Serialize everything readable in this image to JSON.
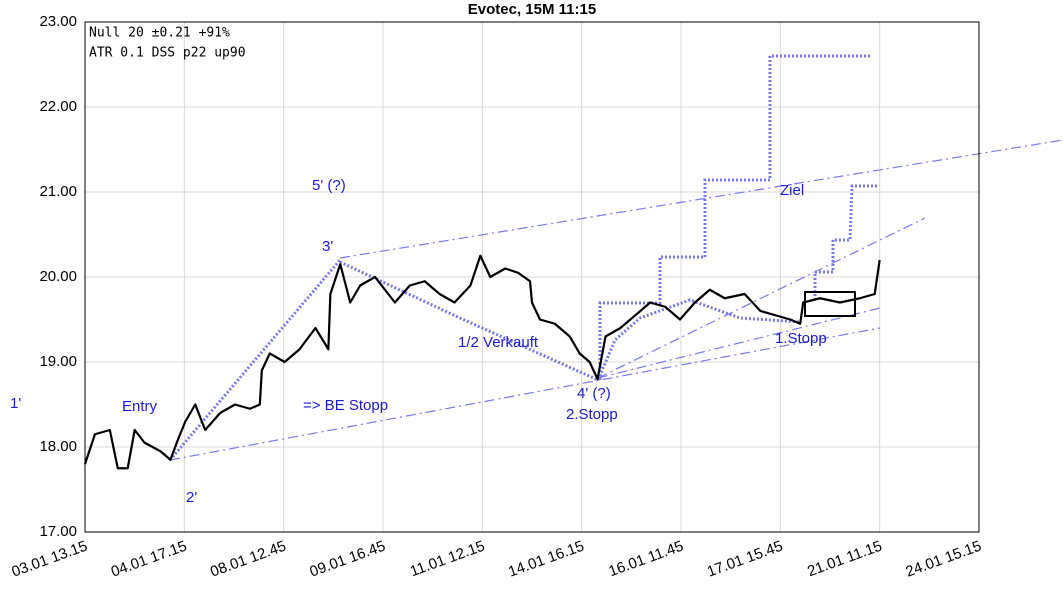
{
  "chart_data": {
    "type": "line",
    "title": "Evotec, 15M 11:15",
    "info": [
      "Null 20 ±0.21 +91%",
      "ATR  0.1 DSS p22 up90"
    ],
    "annotations": [
      "Entry",
      "=> BE Stopp",
      "5' (?)",
      "3'",
      "1/2 Verkauft",
      "4' (?)",
      "2.Stopp",
      "Ziel",
      "1.Stopp",
      "1'",
      "2'"
    ],
    "color": "#000000",
    "x": [
      0,
      0.1,
      0.25,
      0.33,
      0.43,
      0.5,
      0.6,
      0.76,
      0.86,
      0.94,
      1.01,
      1.11,
      1.21,
      1.36,
      1.51,
      1.66,
      1.76,
      1.78,
      1.86,
      2.01,
      2.16,
      2.32,
      2.45,
      2.47,
      2.57,
      2.67,
      2.77,
      2.92,
      3.02,
      3.12,
      3.27,
      3.42,
      3.57,
      3.72,
      3.88,
      3.98,
      4.08,
      4.23,
      4.36,
      4.48,
      4.5,
      4.58,
      4.73,
      4.88,
      4.98,
      5.08,
      5.16,
      5.24,
      5.39,
      5.54,
      5.69,
      5.84,
      5.99,
      6.14,
      6.29,
      6.44,
      6.64,
      6.8,
      6.95,
      7.1,
      7.2,
      7.23,
      7.4,
      7.6,
      7.8,
      7.95,
      8.0
    ],
    "values": [
      17.8,
      18.15,
      18.2,
      17.75,
      17.75,
      18.2,
      18.05,
      17.95,
      17.85,
      18.1,
      18.3,
      18.5,
      18.2,
      18.4,
      18.5,
      18.45,
      18.5,
      18.9,
      19.1,
      19.0,
      19.15,
      19.4,
      19.15,
      19.8,
      20.15,
      19.7,
      19.9,
      20.0,
      19.85,
      19.7,
      19.9,
      19.95,
      19.8,
      19.7,
      19.9,
      20.25,
      20.0,
      20.1,
      20.05,
      19.95,
      19.7,
      19.5,
      19.45,
      19.3,
      19.1,
      19.0,
      18.8,
      19.3,
      19.4,
      19.55,
      19.7,
      19.65,
      19.5,
      19.7,
      19.85,
      19.75,
      19.8,
      19.6,
      19.55,
      19.5,
      19.45,
      19.7,
      19.75,
      19.7,
      19.75,
      19.8,
      20.2
    ],
    "xlim": [
      0,
      9
    ],
    "xticks": [
      {
        "value": 0,
        "label": "03.01 13.15"
      },
      {
        "value": 1,
        "label": "04.01 17.15"
      },
      {
        "value": 2,
        "label": "08.01 12.45"
      },
      {
        "value": 3,
        "label": "09.01 16.45"
      },
      {
        "value": 4,
        "label": "11.01 12.15"
      },
      {
        "value": 5,
        "label": "14.01 16.15"
      },
      {
        "value": 6,
        "label": "16.01 11.45"
      },
      {
        "value": 7,
        "label": "17.01 15.45"
      },
      {
        "value": 8,
        "label": "21.01 11.15"
      },
      {
        "value": 9,
        "label": "24.01 15.15"
      }
    ],
    "ylim": [
      17,
      23
    ],
    "yticks": [
      {
        "value": 17,
        "label": "17.00"
      },
      {
        "value": 18,
        "label": "18.00"
      },
      {
        "value": 19,
        "label": "19.00"
      },
      {
        "value": 20,
        "label": "20.00"
      },
      {
        "value": 21,
        "label": "21.00"
      },
      {
        "value": 22,
        "label": "22.00"
      },
      {
        "value": 23,
        "label": "23.00"
      }
    ],
    "grid": true
  }
}
